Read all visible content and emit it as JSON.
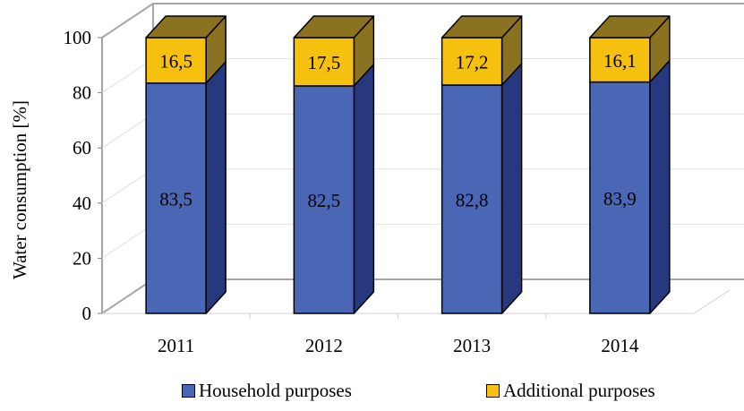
{
  "chart_data": {
    "type": "bar",
    "stacked": true,
    "style": "3d",
    "categories": [
      "2011",
      "2012",
      "2013",
      "2014"
    ],
    "series": [
      {
        "name": "Household purposes",
        "values": [
          83.5,
          82.5,
          82.8,
          83.9
        ],
        "labels": [
          "83,5",
          "82,5",
          "82,8",
          "83,9"
        ],
        "color": "#4A67B5",
        "side_color": "#28387F"
      },
      {
        "name": "Additional purposes",
        "values": [
          16.5,
          17.5,
          17.2,
          16.1
        ],
        "labels": [
          "16,5",
          "17,5",
          "17,2",
          "16,1"
        ],
        "color": "#F5C10E",
        "side_color": "#8B7220"
      }
    ],
    "ylabel": "Water consumption [%]",
    "xlabel": "",
    "ylim": [
      0,
      100
    ],
    "yticks": [
      "0",
      "20",
      "40",
      "60",
      "80",
      "100"
    ],
    "grid": true,
    "legend_position": "bottom"
  }
}
